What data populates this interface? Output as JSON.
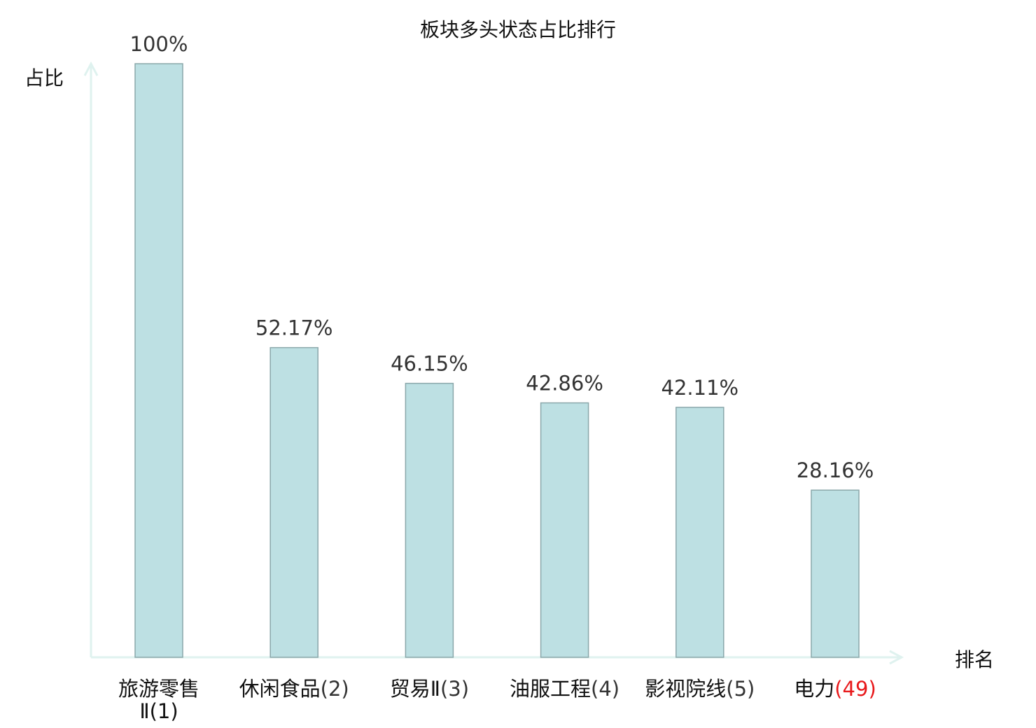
{
  "chart_data": {
    "type": "bar",
    "title": "板块多头状态占比排行",
    "xlabel": "排名",
    "ylabel": "占比",
    "categories": [
      {
        "name": "旅游零售Ⅱ",
        "rank": "(1)"
      },
      {
        "name": "休闲食品",
        "rank": "(2)"
      },
      {
        "name": "贸易Ⅱ",
        "rank": "(3)"
      },
      {
        "name": "油服工程",
        "rank": "(4)"
      },
      {
        "name": "影视院线",
        "rank": "(5)"
      },
      {
        "name": "电力",
        "rank": "(49)"
      }
    ],
    "values": [
      100,
      52.17,
      46.15,
      42.86,
      42.11,
      28.16
    ],
    "value_labels": [
      "100%",
      "52.17%",
      "46.15%",
      "42.86%",
      "42.11%",
      "28.16%"
    ],
    "ylim": [
      0,
      100
    ],
    "grid": false,
    "highlight_index": 5,
    "colors": {
      "bar_fill": "#bde0e3",
      "bar_stroke": "#8aa7aa",
      "axis": "#dff2ef",
      "highlight_text": "#e8191b",
      "text": "#111111"
    }
  }
}
